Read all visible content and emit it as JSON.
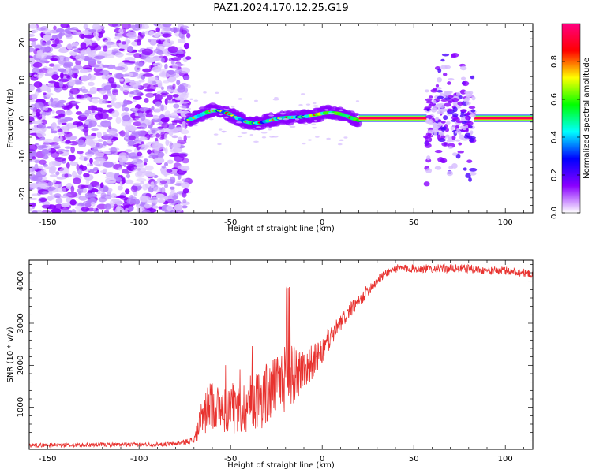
{
  "title": "PAZ1.2024.170.12.25.G19",
  "chart_data": [
    {
      "type": "heatmap",
      "xlabel": "Height of straight line (km)",
      "ylabel": "Frequency (Hz)",
      "xlim": [
        -160,
        115
      ],
      "ylim": [
        -25,
        25
      ],
      "xticks": [
        -150,
        -100,
        -50,
        0,
        50,
        100
      ],
      "yticks": [
        -20,
        -10,
        0,
        10,
        20
      ],
      "colorbar": {
        "label": "Normalized spectral amplitude",
        "range": [
          0,
          1
        ],
        "ticks": [
          0.0,
          0.2,
          0.4,
          0.6,
          0.8
        ],
        "colormap": [
          "#ffffff",
          "#8a00ff",
          "#0000ff",
          "#00ffff",
          "#00ff00",
          "#ffff00",
          "#ff0000",
          "#ff0080"
        ]
      },
      "regions": [
        {
          "x_range": [
            -160,
            -73
          ],
          "y_range": [
            -25,
            25
          ],
          "description": "diffuse noise",
          "amplitude": 0.05
        },
        {
          "x_range": [
            -73,
            20
          ],
          "y_range": [
            -4,
            3
          ],
          "description": "wavy carrier",
          "amplitude": 0.4
        },
        {
          "x_range": [
            20,
            57
          ],
          "y_range": [
            -0.5,
            0.5
          ],
          "description": "strong carrier",
          "amplitude": 0.95
        },
        {
          "x_range": [
            57,
            83
          ],
          "y_range": [
            -15,
            20
          ],
          "description": "scattered signal",
          "amplitude": 0.15
        },
        {
          "x_range": [
            83,
            115
          ],
          "y_range": [
            -0.5,
            0.5
          ],
          "description": "strong carrier",
          "amplitude": 0.95
        }
      ]
    },
    {
      "type": "line",
      "xlabel": "Height of straight line (km)",
      "ylabel": "SNR (10 * v/v)",
      "xlim": [
        -160,
        115
      ],
      "ylim": [
        0,
        4500
      ],
      "xticks": [
        -150,
        -100,
        -50,
        0,
        50,
        100
      ],
      "yticks": [
        1000,
        2000,
        3000,
        4000
      ],
      "color": "#e8322f",
      "series": [
        {
          "x": [
            -160,
            -140,
            -120,
            -100,
            -80,
            -70,
            -65,
            -60,
            -55,
            -50,
            -45,
            -40,
            -35,
            -30,
            -25,
            -20,
            -15,
            -10,
            -5,
            0,
            5,
            10,
            15,
            20,
            25,
            30,
            35,
            40,
            50,
            60,
            70,
            80,
            90,
            100,
            110,
            115
          ],
          "y": [
            100,
            100,
            110,
            110,
            130,
            220,
            800,
            1100,
            900,
            1000,
            900,
            1100,
            1200,
            1300,
            1500,
            1700,
            1800,
            1900,
            2100,
            2300,
            2700,
            3000,
            3300,
            3500,
            3800,
            4000,
            4200,
            4300,
            4300,
            4300,
            4300,
            4300,
            4250,
            4250,
            4200,
            4150
          ],
          "noise": [
            50,
            50,
            50,
            50,
            50,
            80,
            500,
            600,
            550,
            600,
            600,
            700,
            700,
            800,
            700,
            800,
            700,
            500,
            400,
            300,
            250,
            200,
            180,
            150,
            150,
            120,
            100,
            100,
            100,
            100,
            100,
            100,
            100,
            100,
            100,
            100
          ]
        }
      ]
    }
  ]
}
